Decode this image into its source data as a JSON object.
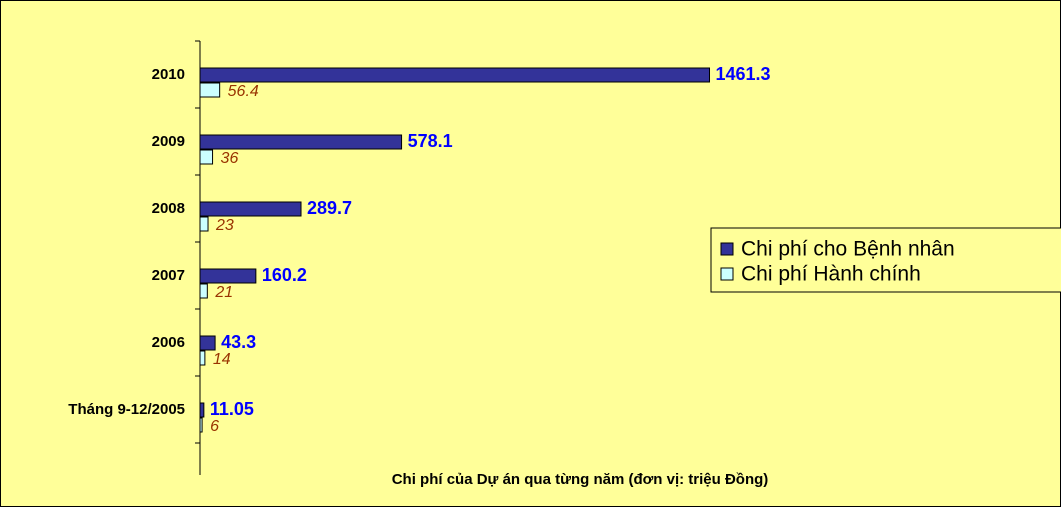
{
  "chart_data": {
    "type": "bar",
    "orientation": "horizontal",
    "x_label": "Chi phí của Dự án qua từng năm (đơn vị: triệu Đồng)",
    "categories": [
      "Tháng 9-12/2005",
      "2006",
      "2007",
      "2008",
      "2009",
      "2010"
    ],
    "series": [
      {
        "name": "Chi phí cho Bệnh nhân",
        "color": "#333399",
        "values": [
          11.05,
          43.3,
          160.2,
          289.7,
          578.1,
          1461.3
        ]
      },
      {
        "name": "Chi phí Hành chính",
        "color": "#ccffff",
        "values": [
          6,
          14,
          21,
          23,
          36,
          56.4
        ]
      }
    ],
    "xlim": [
      0,
      1500
    ],
    "legend": "right"
  }
}
